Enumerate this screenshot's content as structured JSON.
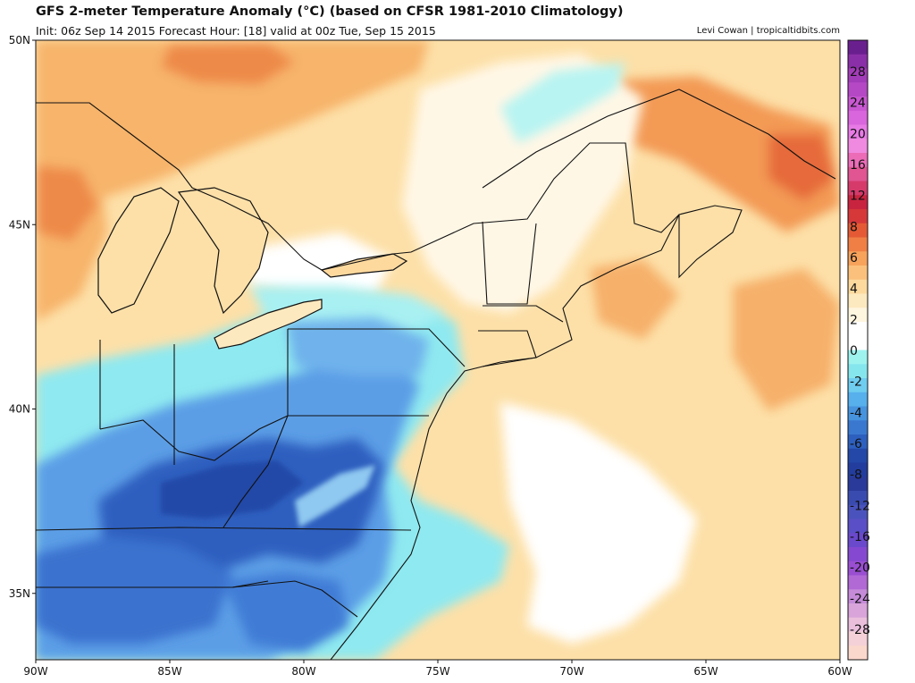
{
  "header": {
    "title": "GFS 2-meter Temperature Anomaly (°C) (based on CFSR 1981-2010 Climatology)",
    "subtitle": "Init: 06z Sep 14 2015   Forecast Hour: [18]   valid at 00z Tue, Sep 15 2015",
    "credit": "Levi Cowan | tropicaltidbits.com"
  },
  "map": {
    "extent": {
      "lon": [
        -90,
        -60
      ],
      "lat": [
        33.2,
        50
      ]
    },
    "lat_ticks": [
      {
        "value": 50,
        "label": "50N"
      },
      {
        "value": 45,
        "label": "45N"
      },
      {
        "value": 40,
        "label": "40N"
      },
      {
        "value": 35,
        "label": "35N"
      }
    ],
    "lon_ticks": [
      {
        "value": -90,
        "label": "90W"
      },
      {
        "value": -85,
        "label": "85W"
      },
      {
        "value": -80,
        "label": "80W"
      },
      {
        "value": -75,
        "label": "75W"
      },
      {
        "value": -70,
        "label": "70W"
      },
      {
        "value": -65,
        "label": "65W"
      },
      {
        "value": -60,
        "label": "60W"
      }
    ],
    "base_color": "#fde0a8"
  },
  "colorbar": {
    "labels": [
      "28",
      "24",
      "20",
      "16",
      "12",
      "8",
      "6",
      "4",
      "2",
      "0",
      "-2",
      "-4",
      "-6",
      "-8",
      "-12",
      "-16",
      "-20",
      "-24",
      "-28"
    ],
    "colors": [
      "#6a1f8f",
      "#8b2fa8",
      "#a33cb8",
      "#b548c5",
      "#c957d2",
      "#d966dc",
      "#e87ae6",
      "#f08ae0",
      "#ec6cb8",
      "#e05592",
      "#d63a6b",
      "#c9243f",
      "#d6383a",
      "#e55a35",
      "#f07f45",
      "#f7a35c",
      "#fbc17c",
      "#fdd99e",
      "#fde9bf",
      "#fff6e0",
      "#ffffff",
      "#ffffff",
      "#9ff3ef",
      "#86e6ee",
      "#6fcdf0",
      "#57b0ec",
      "#4793de",
      "#3a78cf",
      "#2d5fbf",
      "#2348a8",
      "#233d9e",
      "#2a3a9a",
      "#3a4bb0",
      "#4a53bd",
      "#5a4fc6",
      "#6a49cc",
      "#8449d0",
      "#9a4fd2",
      "#b169d6",
      "#c58ad8",
      "#d8a4da",
      "#e9bfdc",
      "#f4d0d8",
      "#fbd8cc"
    ]
  },
  "anomaly_zones": [
    {
      "name": "cold-core-appalachia",
      "value": -9,
      "color": "#2d5fbf"
    },
    {
      "name": "cold-band-ohio-valley",
      "value": -6,
      "color": "#4f8fe0"
    },
    {
      "name": "cool-mid-atlantic",
      "value": -3,
      "color": "#8fe9f0"
    },
    {
      "name": "warm-canada",
      "value": 4,
      "color": "#f7a35c"
    },
    {
      "name": "hot-spot-quebec",
      "value": 7,
      "color": "#e66b3a"
    },
    {
      "name": "warm-nova-scotia",
      "value": 5,
      "color": "#f08a4c"
    },
    {
      "name": "near-normal-new-england",
      "value": 0,
      "color": "#ffffff"
    }
  ]
}
